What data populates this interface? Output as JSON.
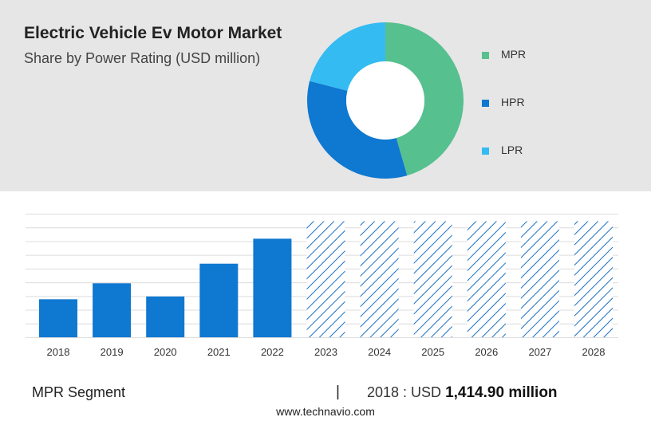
{
  "header": {
    "title": "Electric Vehicle Ev Motor Market",
    "subtitle": "Share by Power Rating (USD million)"
  },
  "colors": {
    "mpr": "#56c08f",
    "hpr": "#0f78d1",
    "lpr": "#34bbf2",
    "bar": "#0f78d1",
    "hatch": "#1a6fc4",
    "grid": "#dcdcdc",
    "panel": "#e6e6e6"
  },
  "footer": {
    "segment_label": "MPR Segment",
    "divider": "|",
    "year_prefix": "2018 : USD",
    "value": "1,414.90 million",
    "site": "www.technavio.com"
  },
  "chart_data": [
    {
      "type": "pie",
      "subtype": "donut",
      "title": "",
      "legend_position": "right",
      "slices": [
        {
          "label": "MPR",
          "value": 45.5,
          "color": "#56c08f"
        },
        {
          "label": "HPR",
          "value": 33.5,
          "color": "#0f78d1"
        },
        {
          "label": "LPR",
          "value": 21.0,
          "color": "#34bbf2"
        }
      ]
    },
    {
      "type": "bar",
      "title": "",
      "xlabel": "",
      "ylabel": "",
      "grid": true,
      "categories": [
        "2018",
        "2019",
        "2020",
        "2021",
        "2022",
        "2023",
        "2024",
        "2025",
        "2026",
        "2027",
        "2028"
      ],
      "values": [
        1414.9,
        2010,
        1520,
        2740,
        3670,
        4320,
        4320,
        4320,
        4320,
        4320,
        4320
      ],
      "forecast_start": 5,
      "ylim": [
        0,
        4750
      ]
    }
  ]
}
